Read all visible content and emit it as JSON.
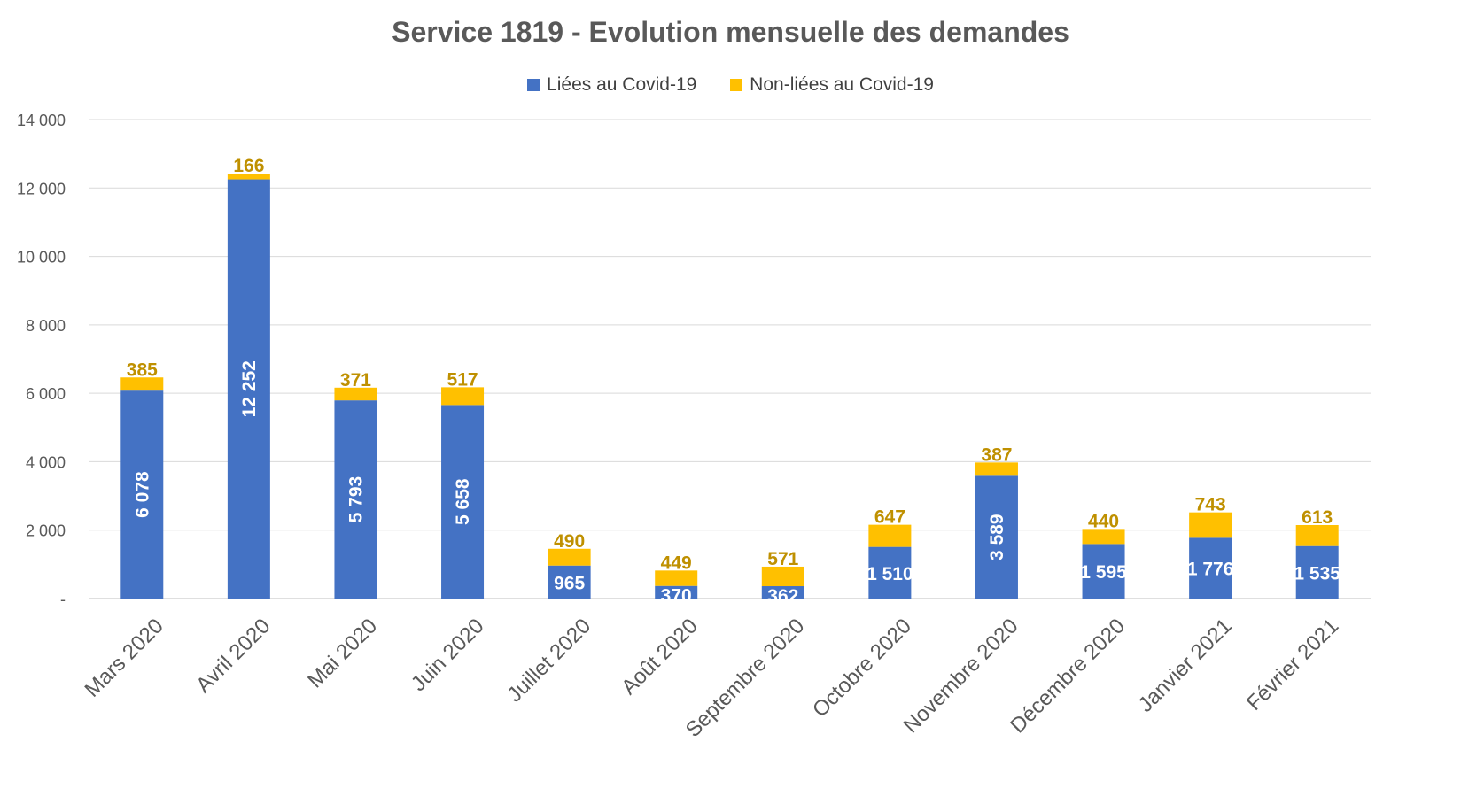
{
  "chart_data": {
    "type": "bar",
    "stacked": true,
    "title": "Service 1819 - Evolution mensuelle des demandes",
    "categories": [
      "Mars 2020",
      "Avril 2020",
      "Mai 2020",
      "Juin 2020",
      "Juillet 2020",
      "Août 2020",
      "Septembre 2020",
      "Octobre 2020",
      "Novembre 2020",
      "Décembre 2020",
      "Janvier 2021",
      "Février 2021"
    ],
    "series": [
      {
        "name": "Liées au Covid-19",
        "color": "#4472C4",
        "label_color": "#ffffff",
        "values": [
          6078,
          12252,
          5793,
          5658,
          965,
          370,
          362,
          1510,
          3589,
          1595,
          1776,
          1535
        ],
        "labels": [
          "6 078",
          "12 252",
          "5 793",
          "5 658",
          "965",
          "370",
          "362",
          "1 510",
          "3 589",
          "1 595",
          "1 776",
          "1 535"
        ]
      },
      {
        "name": "Non-liées au Covid-19",
        "color": "#FFC000",
        "label_color": "#BF9000",
        "values": [
          385,
          166,
          371,
          517,
          490,
          449,
          571,
          647,
          387,
          440,
          743,
          613
        ],
        "labels": [
          "385",
          "166",
          "371",
          "517",
          "490",
          "449",
          "571",
          "647",
          "387",
          "440",
          "743",
          "613"
        ]
      }
    ],
    "y_ticks": [
      0,
      2000,
      4000,
      6000,
      8000,
      10000,
      12000,
      14000
    ],
    "y_tick_labels": [
      "-",
      "2 000",
      "4 000",
      "6 000",
      "8 000",
      "10 000",
      "12 000",
      "14 000"
    ],
    "ylim": [
      0,
      14000
    ],
    "legend_position": "top",
    "grid": true,
    "x_label_rotation": "diagonal"
  }
}
